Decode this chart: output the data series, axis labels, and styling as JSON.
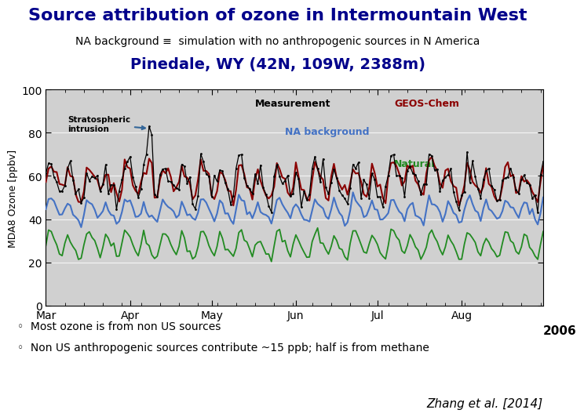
{
  "title": "Source attribution of ozone in Intermountain West",
  "subtitle": "NA background ≡  simulation with no anthropogenic sources in N America",
  "subtitle2": "Pinedale, WY (42N, 109W, 2388m)",
  "title_color": "#00008B",
  "title_fontsize": 16,
  "subtitle_fontsize": 10,
  "subtitle2_fontsize": 14,
  "ylabel": "MDA8 Ozone [ppbv]",
  "xlabel_months": [
    "Mar",
    "Apr",
    "May",
    "Jun",
    "Jul",
    "Aug"
  ],
  "xlabel_year": "2006",
  "ylim": [
    0,
    100
  ],
  "yticks": [
    0,
    20,
    40,
    60,
    80,
    100
  ],
  "bullet1": "Most ozone is from non US sources",
  "bullet2": "Non US anthropogenic sources contribute ~15 ppb; half is from methane",
  "citation": "Zhang et al. [2014]",
  "annotation_text": "Stratospheric\nintrusion",
  "legend_measurement": "Measurement",
  "legend_geos": "GEOS-Chem",
  "legend_na": "NA background",
  "legend_natural": "Natural",
  "color_measurement": "#000000",
  "color_geos": "#8B0000",
  "color_na": "#4472C4",
  "color_natural": "#228B22",
  "bg_color": "#ffffff",
  "plot_bg": "#d0d0d0",
  "n_points": 184,
  "month_ticks": [
    0,
    31,
    61,
    92,
    122,
    153
  ]
}
